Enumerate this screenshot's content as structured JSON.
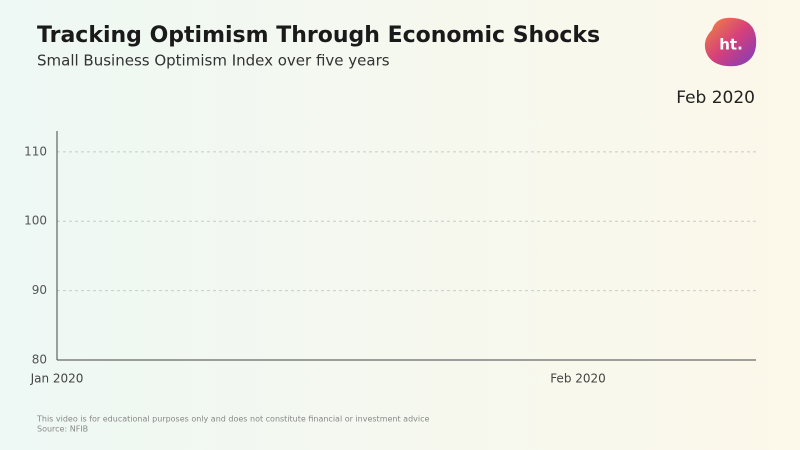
{
  "chart_data": {
    "type": "line",
    "title": "Tracking Optimism Through Economic Shocks",
    "subtitle": "Small Business Optimism Index over five years",
    "date_label": "Feb 2020",
    "logo": "ht.",
    "x": [
      "Jan 2020",
      "Feb 2020"
    ],
    "values": [
      null,
      null
    ],
    "color": "#e0473c",
    "ylim": [
      80,
      113
    ],
    "yticks": [
      80,
      90,
      100,
      110
    ],
    "grid": true,
    "footnote": "This video is for educational purposes only and does not constitute financial or investment advice",
    "source": "Source: NFIB"
  }
}
